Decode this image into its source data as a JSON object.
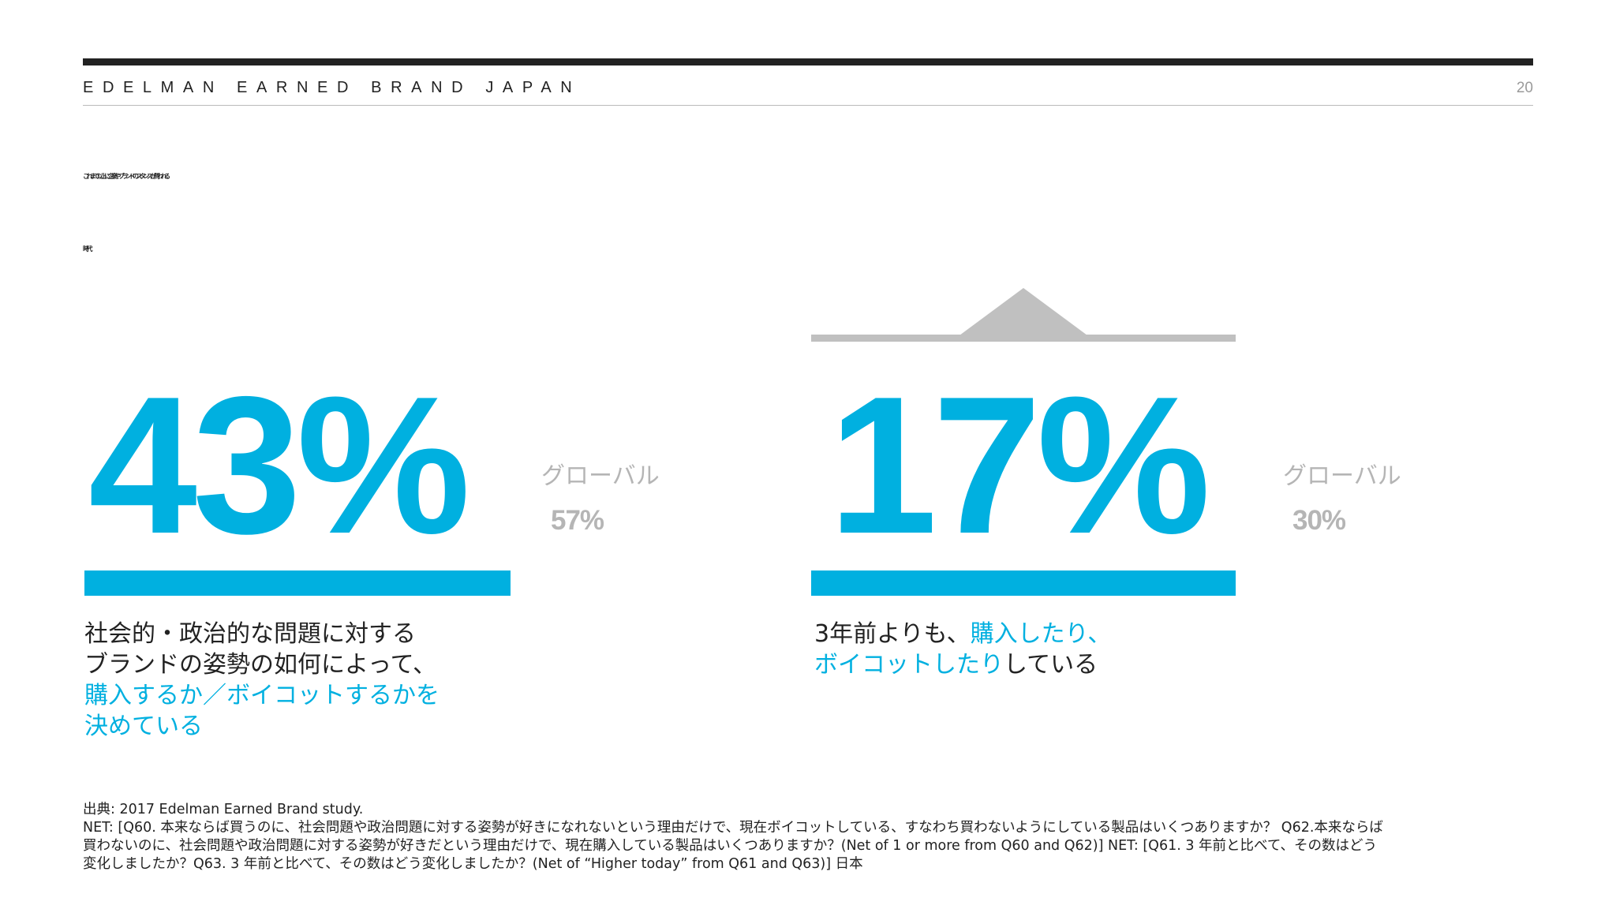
{
  "header": {
    "brand_label": "EDELMAN EARNED BRAND JAPAN",
    "page_number": "20"
  },
  "title": {
    "line1": "これまで以上に企業やブランドのスタンスが問われる",
    "line2": "時代"
  },
  "stat_left": {
    "value": "43%",
    "global_label": "グローバル",
    "global_value": "57%",
    "description": {
      "line1": "社会的・政治的な問題に対する",
      "line2": "ブランドの姿勢の如何によって、",
      "line3_highlight": "購入するか／ボイコットするかを",
      "line4_highlight": "決めている"
    }
  },
  "stat_right": {
    "value": "17%",
    "global_label": "グローバル",
    "global_value": "30%",
    "description": {
      "line1_plain": "3年前よりも、",
      "line1_highlight": "購入したり、",
      "line2_highlight": "ボイコットしたり",
      "line2_plain": "している"
    }
  },
  "footnote": {
    "line1": "出典: 2017 Edelman Earned Brand study.",
    "line2": "NET: [Q60. 本来ならば買うのに、社会問題や政治問題に対する姿勢が好きになれないという理由だけで、現在ボイコットしている、すなわち買わないようにしている製品はいくつありますか？ Q62.本来ならば",
    "line3": "買わないのに、社会問題や政治問題に対する姿勢が好きだという理由だけで、現在購入している製品はいくつありますか？(Net of 1 or more from Q60 and Q62)] NET: [Q61. 3 年前と比べて、その数はどう",
    "line4": "変化しましたか？Q63. 3 年前と比べて、その数はどう変化しましたか？(Net of “Higher today” from Q61 and Q63)] 日本"
  },
  "colors": {
    "accent": "#00b0e0",
    "muted": "#b5b5b5",
    "text": "#222222",
    "marker": "#c0c0c0"
  }
}
